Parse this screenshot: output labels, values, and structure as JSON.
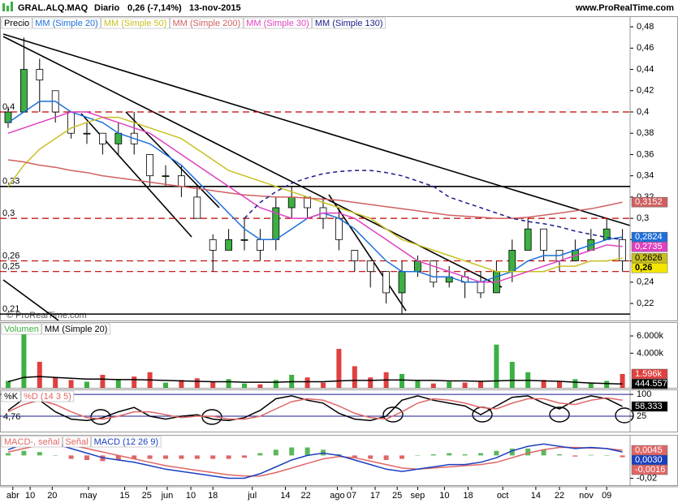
{
  "chart_data": [
    {
      "type": "candlestick",
      "title": "GRAL.ALQ.MAQ",
      "subtitle": "Diario",
      "change": "0,26 (-7,14%)",
      "date": "13-nov-2015",
      "site": "www.ProRealTime.com",
      "annotation": "© ProRealTime.com",
      "name": "Precio",
      "up_color": "#3cb043",
      "down_color": "#ffffff",
      "last_label": "0,26",
      "last_label_color": "#f5e600",
      "candles": [
        [
          0.39,
          0.405,
          0.385,
          0.4
        ],
        [
          0.4,
          0.47,
          0.4,
          0.44
        ],
        [
          0.44,
          0.45,
          0.4,
          0.43
        ],
        [
          0.42,
          0.42,
          0.39,
          0.4
        ],
        [
          0.4,
          0.4,
          0.375,
          0.38
        ],
        [
          0.38,
          0.39,
          0.37,
          0.38
        ],
        [
          0.38,
          0.38,
          0.36,
          0.37
        ],
        [
          0.37,
          0.39,
          0.36,
          0.38
        ],
        [
          0.38,
          0.4,
          0.36,
          0.37
        ],
        [
          0.36,
          0.36,
          0.33,
          0.34
        ],
        [
          0.34,
          0.35,
          0.33,
          0.34
        ],
        [
          0.34,
          0.35,
          0.32,
          0.33
        ],
        [
          0.32,
          0.33,
          0.3,
          0.3
        ],
        [
          0.28,
          0.285,
          0.25,
          0.27
        ],
        [
          0.27,
          0.29,
          0.27,
          0.28
        ],
        [
          0.28,
          0.3,
          0.27,
          0.28
        ],
        [
          0.28,
          0.29,
          0.26,
          0.27
        ],
        [
          0.28,
          0.32,
          0.27,
          0.31
        ],
        [
          0.31,
          0.33,
          0.3,
          0.32
        ],
        [
          0.32,
          0.32,
          0.3,
          0.31
        ],
        [
          0.31,
          0.32,
          0.29,
          0.3
        ],
        [
          0.3,
          0.31,
          0.27,
          0.28
        ],
        [
          0.27,
          0.27,
          0.25,
          0.26
        ],
        [
          0.26,
          0.26,
          0.235,
          0.25
        ],
        [
          0.25,
          0.25,
          0.22,
          0.23
        ],
        [
          0.23,
          0.26,
          0.21,
          0.25
        ],
        [
          0.25,
          0.265,
          0.245,
          0.26
        ],
        [
          0.26,
          0.26,
          0.235,
          0.24
        ],
        [
          0.24,
          0.255,
          0.235,
          0.245
        ],
        [
          0.245,
          0.25,
          0.225,
          0.24
        ],
        [
          0.24,
          0.25,
          0.225,
          0.23
        ],
        [
          0.23,
          0.26,
          0.23,
          0.25
        ],
        [
          0.25,
          0.28,
          0.24,
          0.27
        ],
        [
          0.27,
          0.3,
          0.27,
          0.29
        ],
        [
          0.29,
          0.29,
          0.26,
          0.27
        ],
        [
          0.27,
          0.27,
          0.25,
          0.26
        ],
        [
          0.26,
          0.28,
          0.26,
          0.27
        ],
        [
          0.27,
          0.29,
          0.27,
          0.28
        ],
        [
          0.28,
          0.3,
          0.28,
          0.29
        ],
        [
          0.28,
          0.29,
          0.25,
          0.26
        ]
      ],
      "series": [
        {
          "name": "MM (Simple 20)",
          "color": "#1e6fd9",
          "last_label": "0,2824",
          "values": [
            0.39,
            0.4,
            0.41,
            0.41,
            0.4,
            0.395,
            0.39,
            0.38,
            0.375,
            0.37,
            0.36,
            0.35,
            0.335,
            0.32,
            0.305,
            0.29,
            0.28,
            0.28,
            0.29,
            0.3,
            0.305,
            0.3,
            0.29,
            0.275,
            0.26,
            0.25,
            0.25,
            0.245,
            0.245,
            0.24,
            0.24,
            0.245,
            0.25,
            0.26,
            0.265,
            0.265,
            0.27,
            0.275,
            0.28,
            0.2824
          ]
        },
        {
          "name": "MM (Simple 50)",
          "color": "#c8c020",
          "last_label": "0,2626",
          "values": [
            0.33,
            0.35,
            0.365,
            0.375,
            0.385,
            0.39,
            0.395,
            0.395,
            0.39,
            0.385,
            0.38,
            0.375,
            0.365,
            0.355,
            0.345,
            0.34,
            0.335,
            0.33,
            0.325,
            0.32,
            0.315,
            0.31,
            0.305,
            0.3,
            0.29,
            0.28,
            0.275,
            0.27,
            0.265,
            0.26,
            0.255,
            0.25,
            0.25,
            0.25,
            0.25,
            0.255,
            0.255,
            0.26,
            0.26,
            0.2626
          ]
        },
        {
          "name": "MM (Simple 200)",
          "color": "#d06060",
          "last_label": "0,3152",
          "values": [
            0.355,
            0.353,
            0.35,
            0.348,
            0.345,
            0.343,
            0.34,
            0.338,
            0.336,
            0.334,
            0.332,
            0.33,
            0.328,
            0.326,
            0.324,
            0.322,
            0.321,
            0.32,
            0.32,
            0.319,
            0.318,
            0.317,
            0.315,
            0.313,
            0.311,
            0.309,
            0.307,
            0.305,
            0.303,
            0.302,
            0.301,
            0.3,
            0.3,
            0.301,
            0.303,
            0.305,
            0.307,
            0.309,
            0.312,
            0.3152
          ]
        },
        {
          "name": "MM (Simple 30)",
          "color": "#e040c0",
          "last_label": "0,2735",
          "values": [
            0.38,
            0.385,
            0.39,
            0.395,
            0.4,
            0.4,
            0.395,
            0.39,
            0.385,
            0.38,
            0.37,
            0.36,
            0.35,
            0.34,
            0.33,
            0.32,
            0.31,
            0.305,
            0.3,
            0.3,
            0.305,
            0.305,
            0.3,
            0.29,
            0.28,
            0.27,
            0.26,
            0.255,
            0.25,
            0.245,
            0.24,
            0.24,
            0.245,
            0.25,
            0.255,
            0.26,
            0.265,
            0.27,
            0.275,
            0.2735
          ]
        },
        {
          "name": "MM (Simple 130)",
          "color": "#1a1a8c",
          "dashed": true,
          "values": [
            null,
            null,
            null,
            null,
            null,
            null,
            null,
            null,
            null,
            null,
            null,
            null,
            null,
            null,
            null,
            0.3,
            0.315,
            0.325,
            0.333,
            0.338,
            0.342,
            0.344,
            0.345,
            0.345,
            0.343,
            0.34,
            0.335,
            0.33,
            0.32,
            0.315,
            0.31,
            0.305,
            0.3,
            0.297,
            0.295,
            0.292,
            0.288,
            0.285,
            0.282,
            0.28
          ]
        }
      ],
      "levels": [
        {
          "value": 0.4,
          "label": "0,4",
          "color": "#c00000",
          "dashed": true
        },
        {
          "value": 0.33,
          "label": "0,33",
          "color": "#000000",
          "dashed": false
        },
        {
          "value": 0.3,
          "label": "0,3",
          "color": "#c00000",
          "dashed": true
        },
        {
          "value": 0.26,
          "label": "0,26",
          "color": "#c00000",
          "dashed": true
        },
        {
          "value": 0.25,
          "label": "0,25",
          "color": "#c00000",
          "dashed": true
        },
        {
          "value": 0.21,
          "label": "0,21",
          "color": "#000000",
          "dashed": false
        }
      ],
      "ylim": [
        0.204,
        0.49
      ],
      "yticks": [
        {
          "value": 0.48,
          "label": "0,48"
        },
        {
          "value": 0.46,
          "label": "0,46"
        },
        {
          "value": 0.44,
          "label": "0,44"
        },
        {
          "value": 0.42,
          "label": "0,42"
        },
        {
          "value": 0.4,
          "label": "0,4"
        },
        {
          "value": 0.38,
          "label": "0,38"
        },
        {
          "value": 0.36,
          "label": "0,36"
        },
        {
          "value": 0.34,
          "label": "0,34"
        },
        {
          "value": 0.32,
          "label": "0,32"
        },
        {
          "value": 0.3,
          "label": "0,3"
        },
        {
          "value": 0.28,
          "label": "0,28"
        },
        {
          "value": 0.26,
          "label": "0,26"
        },
        {
          "value": 0.24,
          "label": "0,24"
        },
        {
          "value": 0.22,
          "label": "0,22"
        }
      ],
      "xticks": [
        {
          "value": 0.3,
          "label": "abr"
        },
        {
          "value": 1.4,
          "label": "10"
        },
        {
          "value": 2.8,
          "label": "20"
        },
        {
          "value": 5.1,
          "label": "may"
        },
        {
          "value": 7.4,
          "label": "15"
        },
        {
          "value": 8.8,
          "label": "25"
        },
        {
          "value": 10.1,
          "label": "jun"
        },
        {
          "value": 11.6,
          "label": "10"
        },
        {
          "value": 13.0,
          "label": "18"
        },
        {
          "value": 15.5,
          "label": "jul"
        },
        {
          "value": 17.6,
          "label": "14"
        },
        {
          "value": 18.9,
          "label": "22"
        },
        {
          "value": 20.9,
          "label": "ago"
        },
        {
          "value": 21.8,
          "label": "07"
        },
        {
          "value": 23.3,
          "label": "17"
        },
        {
          "value": 24.7,
          "label": "25"
        },
        {
          "value": 26.0,
          "label": "sep"
        },
        {
          "value": 27.7,
          "label": "10"
        },
        {
          "value": 29.2,
          "label": "18"
        },
        {
          "value": 31.4,
          "label": "oct"
        },
        {
          "value": 33.5,
          "label": "14"
        },
        {
          "value": 35.0,
          "label": "22"
        },
        {
          "value": 36.7,
          "label": "nov"
        },
        {
          "value": 38.0,
          "label": "09"
        }
      ]
    },
    {
      "type": "bar",
      "name": "Volumen",
      "color": "#3cb043",
      "down_color": "#e04040",
      "last_label": "1.596k",
      "values": [
        800,
        6500,
        3000,
        1200,
        900,
        700,
        1500,
        1000,
        1300,
        1800,
        600,
        900,
        1100,
        700,
        1000,
        500,
        400,
        900,
        1500,
        1200,
        600,
        4500,
        2500,
        1200,
        1800,
        1600,
        900,
        500,
        700,
        600,
        800,
        5000,
        3000,
        1800,
        900,
        700,
        1000,
        600,
        800,
        1596
      ],
      "series": [
        {
          "name": "MM (Simple 20)",
          "color": "#000000",
          "last_label": "444.557",
          "values": [
            700,
            1200,
            1300,
            1200,
            1100,
            1000,
            1000,
            950,
            950,
            900,
            850,
            800,
            750,
            700,
            700,
            650,
            650,
            650,
            700,
            700,
            700,
            800,
            850,
            850,
            900,
            900,
            850,
            850,
            800,
            800,
            750,
            800,
            850,
            850,
            800,
            750,
            650,
            550,
            500,
            444.557
          ]
        }
      ],
      "ylim": [
        0,
        7600
      ],
      "yticks": [
        {
          "value": 6000,
          "label": "6.000k"
        },
        {
          "value": 4000,
          "label": "4.000k"
        }
      ]
    },
    {
      "type": "line",
      "annotation": "4,76",
      "grid": true,
      "series": [
        {
          "name": "%K",
          "color": "#000000",
          "last_label": "58,333",
          "values": [
            45,
            85,
            80,
            40,
            15,
            10,
            20,
            40,
            55,
            25,
            15,
            25,
            30,
            15,
            10,
            20,
            45,
            85,
            95,
            80,
            70,
            35,
            15,
            10,
            25,
            80,
            95,
            80,
            70,
            60,
            30,
            60,
            90,
            95,
            70,
            50,
            80,
            95,
            85,
            58.333
          ]
        },
        {
          "name": "%D (14 3 5)",
          "color": "#e06666",
          "values": [
            40,
            65,
            80,
            65,
            40,
            20,
            15,
            25,
            40,
            40,
            30,
            20,
            25,
            25,
            15,
            15,
            25,
            50,
            75,
            85,
            80,
            60,
            35,
            20,
            15,
            40,
            70,
            85,
            80,
            70,
            55,
            50,
            70,
            85,
            85,
            70,
            65,
            80,
            88,
            80
          ]
        }
      ],
      "ylim": [
        -28,
        117
      ],
      "yticks": [
        100,
        25
      ]
    },
    {
      "type": "bar",
      "name": "MACD-, señal",
      "color": "#e06666",
      "up_color": "#5cb85c",
      "last_label": "-0,0016",
      "values": [
        0.002,
        0.004,
        0.003,
        0,
        -0.003,
        -0.004,
        -0.005,
        -0.004,
        -0.003,
        -0.003,
        -0.003,
        -0.003,
        -0.003,
        -0.003,
        -0.003,
        -0.002,
        0.002,
        0.005,
        0.007,
        0.007,
        0.005,
        0.001,
        -0.002,
        -0.003,
        -0.004,
        -0.003,
        0,
        0.001,
        0.002,
        0.001,
        0.002,
        0.004,
        0.006,
        0.006,
        0.005,
        0.001,
        -0.001,
        0.0005,
        0,
        -0.0016
      ],
      "series": [
        {
          "name": "Señal",
          "color": "#e06666",
          "last_label": "0,0045",
          "values": [
            0.003,
            0.006,
            0.009,
            0.01,
            0.009,
            0.006,
            0.003,
            0,
            -0.003,
            -0.006,
            -0.009,
            -0.011,
            -0.013,
            -0.015,
            -0.017,
            -0.018,
            -0.018,
            -0.015,
            -0.011,
            -0.007,
            -0.003,
            -0.001,
            -0.002,
            -0.005,
            -0.008,
            -0.011,
            -0.012,
            -0.011,
            -0.01,
            -0.009,
            -0.008,
            -0.006,
            -0.002,
            0.002,
            0.005,
            0.007,
            0.007,
            0.0065,
            0.006,
            0.0045
          ]
        },
        {
          "name": "MACD (12 26 9)",
          "color": "#1a3fbf",
          "last_label": "0,0030",
          "values": [
            0.005,
            0.01,
            0.012,
            0.01,
            0.006,
            0.002,
            -0.002,
            -0.004,
            -0.006,
            -0.009,
            -0.012,
            -0.014,
            -0.016,
            -0.018,
            -0.02,
            -0.02,
            -0.016,
            -0.01,
            -0.004,
            0,
            0.002,
            0,
            -0.004,
            -0.008,
            -0.012,
            -0.014,
            -0.012,
            -0.01,
            -0.008,
            -0.008,
            -0.006,
            -0.002,
            0.004,
            0.008,
            0.01,
            0.008,
            0.006,
            0.007,
            0.006,
            0.003
          ]
        }
      ],
      "ylim": [
        -0.026,
        0.018
      ],
      "yticks": [
        {
          "value": -0.02,
          "label": "-0,02"
        }
      ]
    }
  ]
}
